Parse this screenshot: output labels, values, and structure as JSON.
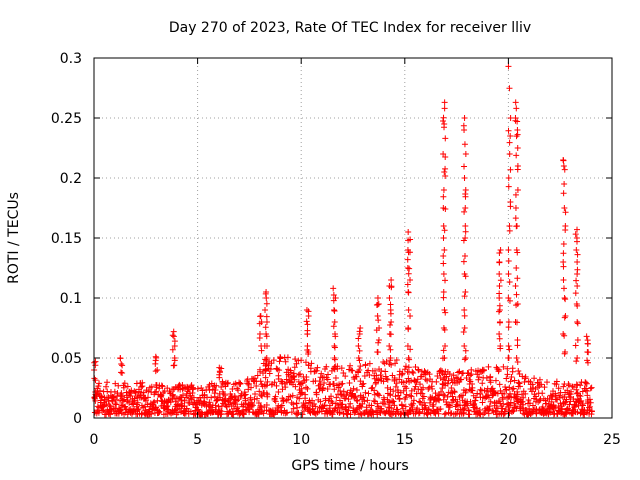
{
  "chart_data": {
    "type": "scatter",
    "title": "Day 270 of 2023, Rate Of TEC Index for receiver lliv",
    "xlabel": "GPS time / hours",
    "ylabel": "ROTI / TECUs",
    "xlim": [
      0,
      25
    ],
    "ylim": [
      0,
      0.3
    ],
    "grid": true,
    "marker": "plus",
    "color": "#ff0000",
    "x_ticks": [
      0,
      5,
      10,
      15,
      20,
      25
    ],
    "x_tick_labels": [
      "0",
      "5",
      "10",
      "15",
      "20",
      "25"
    ],
    "y_ticks": [
      0,
      0.05,
      0.1,
      0.15,
      0.2,
      0.25,
      0.3
    ],
    "y_tick_labels": [
      "0",
      "0.05",
      "0.1",
      "0.15",
      "0.2",
      "0.25",
      "0.3"
    ],
    "baseline_band": [
      0.003,
      0.032
    ],
    "clusters": [
      {
        "x": 0.05,
        "values": [
          0.047,
          0.046,
          0.04,
          0.033
        ]
      },
      {
        "x": 1.3,
        "values": [
          0.05,
          0.045,
          0.038
        ]
      },
      {
        "x": 3.0,
        "values": [
          0.051,
          0.048,
          0.04
        ]
      },
      {
        "x": 3.85,
        "values": [
          0.072,
          0.068,
          0.06,
          0.05,
          0.044
        ]
      },
      {
        "x": 6.1,
        "values": [
          0.042,
          0.039,
          0.036
        ]
      },
      {
        "x": 8.3,
        "values": [
          0.105,
          0.1,
          0.09,
          0.08,
          0.07,
          0.06,
          0.05,
          0.045,
          0.04
        ]
      },
      {
        "x": 8.05,
        "values": [
          0.085,
          0.08,
          0.07,
          0.06
        ]
      },
      {
        "x": 10.3,
        "values": [
          0.09,
          0.085,
          0.078,
          0.07,
          0.06,
          0.055
        ]
      },
      {
        "x": 11.6,
        "values": [
          0.108,
          0.1,
          0.09,
          0.08,
          0.07,
          0.06,
          0.05
        ]
      },
      {
        "x": 12.8,
        "values": [
          0.075,
          0.07,
          0.06,
          0.05
        ]
      },
      {
        "x": 13.7,
        "values": [
          0.1,
          0.095,
          0.085,
          0.075,
          0.065,
          0.055
        ]
      },
      {
        "x": 14.3,
        "values": [
          0.115,
          0.11,
          0.1,
          0.09,
          0.08,
          0.07,
          0.06,
          0.05,
          0.045
        ]
      },
      {
        "x": 15.2,
        "values": [
          0.155,
          0.148,
          0.14,
          0.132,
          0.125,
          0.115,
          0.105,
          0.09,
          0.075,
          0.06,
          0.05
        ]
      },
      {
        "x": 16.9,
        "values": [
          0.263,
          0.258,
          0.245,
          0.233,
          0.22,
          0.205,
          0.19,
          0.175,
          0.16,
          0.15,
          0.135,
          0.12,
          0.105,
          0.09,
          0.075,
          0.06,
          0.05
        ]
      },
      {
        "x": 17.9,
        "values": [
          0.25,
          0.24,
          0.22,
          0.2,
          0.19,
          0.175,
          0.16,
          0.15,
          0.135,
          0.12,
          0.105,
          0.09,
          0.075,
          0.06,
          0.05
        ]
      },
      {
        "x": 19.6,
        "values": [
          0.14,
          0.13,
          0.12,
          0.11,
          0.1,
          0.09,
          0.08,
          0.07,
          0.06
        ]
      },
      {
        "x": 20.05,
        "values": [
          0.293,
          0.25,
          0.235,
          0.22,
          0.2,
          0.18,
          0.16,
          0.14,
          0.12,
          0.1,
          0.08,
          0.06,
          0.05
        ]
      },
      {
        "x": 20.4,
        "values": [
          0.263,
          0.258,
          0.25,
          0.24,
          0.225,
          0.21,
          0.19,
          0.175,
          0.16,
          0.14,
          0.125,
          0.11,
          0.095,
          0.08,
          0.065,
          0.05
        ]
      },
      {
        "x": 22.7,
        "values": [
          0.215,
          0.21,
          0.195,
          0.175,
          0.16,
          0.145,
          0.13,
          0.115,
          0.1,
          0.085,
          0.07,
          0.055
        ]
      },
      {
        "x": 23.3,
        "values": [
          0.157,
          0.15,
          0.14,
          0.13,
          0.12,
          0.11,
          0.095,
          0.08,
          0.065,
          0.05
        ]
      },
      {
        "x": 23.8,
        "values": [
          0.068,
          0.062,
          0.055,
          0.048
        ]
      }
    ],
    "hourly_envelope": [
      {
        "x": 0,
        "max": 0.03
      },
      {
        "x": 2,
        "max": 0.03
      },
      {
        "x": 4,
        "max": 0.028
      },
      {
        "x": 6,
        "max": 0.03
      },
      {
        "x": 7.8,
        "max": 0.035
      },
      {
        "x": 8.2,
        "max": 0.055
      },
      {
        "x": 9.5,
        "max": 0.05
      },
      {
        "x": 11,
        "max": 0.045
      },
      {
        "x": 13,
        "max": 0.045
      },
      {
        "x": 14.5,
        "max": 0.05
      },
      {
        "x": 16,
        "max": 0.04
      },
      {
        "x": 18,
        "max": 0.04
      },
      {
        "x": 20,
        "max": 0.045
      },
      {
        "x": 21,
        "max": 0.035
      },
      {
        "x": 22.5,
        "max": 0.03
      },
      {
        "x": 24,
        "max": 0.03
      }
    ]
  }
}
